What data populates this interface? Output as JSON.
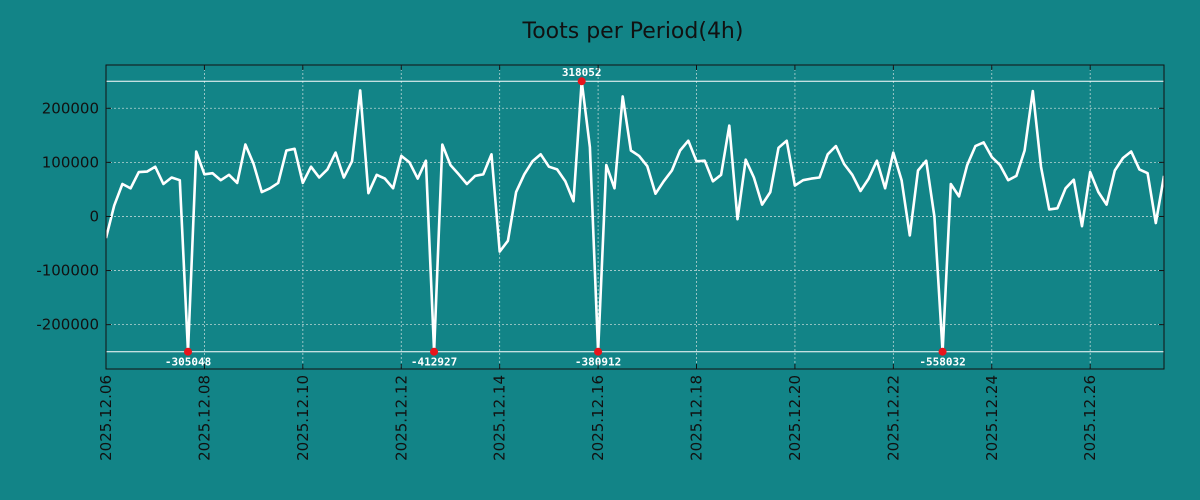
{
  "chart_data": {
    "type": "line",
    "title": "Toots per Period(4h)",
    "xlabel": "",
    "ylabel": "",
    "grid": true,
    "ylim": [
      -282000,
      280000
    ],
    "xlim": [
      "2025.12.06",
      "2025.12.27 06:00"
    ],
    "y_ticks": [
      -200000,
      -100000,
      0,
      100000,
      200000
    ],
    "y_tick_labels": [
      "-200000",
      "-100000",
      "0",
      "100000",
      "200000"
    ],
    "x_ticks": [
      "2025.12.06",
      "2025.12.08",
      "2025.12.10",
      "2025.12.12",
      "2025.12.14",
      "2025.12.16",
      "2025.12.18",
      "2025.12.20",
      "2025.12.22",
      "2025.12.24",
      "2025.12.26"
    ],
    "x_tick_days": [
      0,
      2,
      4,
      6,
      8,
      10,
      12,
      14,
      16,
      18,
      20
    ],
    "period_hours": 4,
    "clip_upper": 250000,
    "clip_lower": -250000,
    "series": [
      {
        "name": "Toots per Period(4h)",
        "color": "#ffffff",
        "values": [
          -40000,
          20000,
          60000,
          52000,
          82000,
          83000,
          92000,
          60000,
          72000,
          67000,
          -250000,
          120000,
          78000,
          80000,
          67000,
          77000,
          62000,
          133000,
          97000,
          45000,
          52000,
          62000,
          122000,
          125000,
          62000,
          92000,
          72000,
          87000,
          118000,
          72000,
          102000,
          233000,
          43000,
          77000,
          70000,
          52000,
          112000,
          100000,
          70000,
          103000,
          -250000,
          133000,
          95000,
          78000,
          60000,
          75000,
          78000,
          115000,
          -65000,
          -45000,
          45000,
          78000,
          102000,
          115000,
          92000,
          87000,
          65000,
          28000,
          250000,
          128000,
          -250000,
          95000,
          52000,
          222000,
          122000,
          112000,
          93000,
          42000,
          65000,
          85000,
          122000,
          140000,
          102000,
          103000,
          65000,
          77000,
          168000,
          -5000,
          105000,
          72000,
          22000,
          45000,
          127000,
          140000,
          57000,
          67000,
          70000,
          72000,
          115000,
          130000,
          97000,
          77000,
          47000,
          70000,
          103000,
          52000,
          118000,
          67000,
          -35000,
          85000,
          103000,
          0,
          -250000,
          60000,
          37000,
          95000,
          130000,
          137000,
          110000,
          95000,
          67000,
          75000,
          122000,
          232000,
          92000,
          13000,
          15000,
          52000,
          68000,
          -18000,
          82000,
          45000,
          22000,
          85000,
          108000,
          120000,
          87000,
          80000,
          -12000,
          75000
        ]
      }
    ],
    "reference_lines": [
      {
        "name": "upper-clip-line",
        "value": 250000
      },
      {
        "name": "lower-clip-line",
        "value": -250000
      }
    ],
    "annotations": [
      {
        "index": 10,
        "value": -250000,
        "label": "-305048",
        "position": "below"
      },
      {
        "index": 40,
        "value": -250000,
        "label": "-412927",
        "position": "below"
      },
      {
        "index": 58,
        "value": 250000,
        "label": "318052",
        "position": "above"
      },
      {
        "index": 60,
        "value": -250000,
        "label": "-380912",
        "position": "below"
      },
      {
        "index": 102,
        "value": -250000,
        "label": "-558032",
        "position": "below"
      }
    ],
    "colors": {
      "background": "#128487",
      "line": "#ffffff",
      "marker": "#e8141c",
      "grid": "#b8d4d4",
      "axis": "#111111"
    }
  }
}
